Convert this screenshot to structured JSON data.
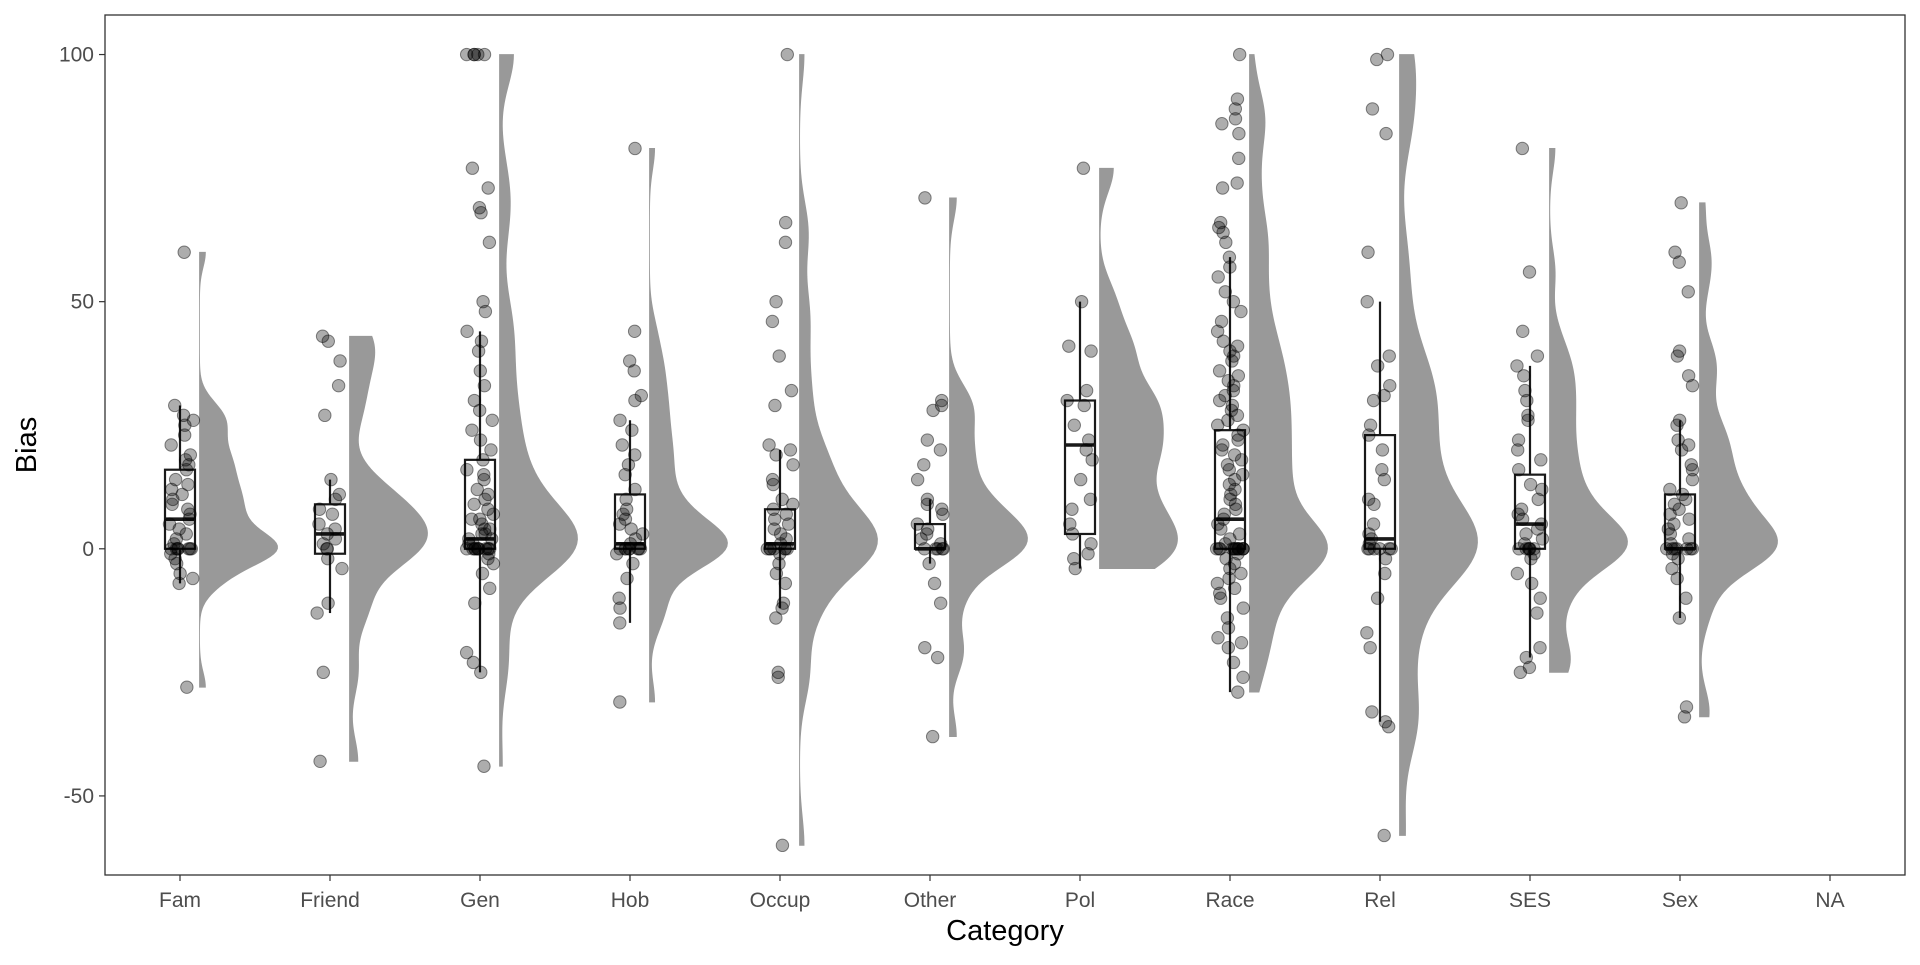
{
  "chart_data": {
    "type": "raincloud",
    "title": "",
    "xlabel": "Category",
    "ylabel": "Bias",
    "categories": [
      "Fam",
      "Friend",
      "Gen",
      "Hob",
      "Occup",
      "Other",
      "Pol",
      "Race",
      "Rel",
      "SES",
      "Sex",
      "NA"
    ],
    "ylim": [
      -66,
      108
    ],
    "yticks": [
      -50,
      0,
      50,
      100
    ],
    "grid": false,
    "legend": "none",
    "colors": {
      "points": "#000000",
      "density": "#999999",
      "box": "#1a1a1a",
      "panel_border": "#333333"
    },
    "boxes": [
      {
        "category": "Fam",
        "whisker_low": -7,
        "q1": 0,
        "median": 6,
        "q3": 16,
        "whisker_high": 29
      },
      {
        "category": "Friend",
        "whisker_low": -13,
        "q1": -1,
        "median": 3,
        "q3": 9,
        "whisker_high": 14
      },
      {
        "category": "Gen",
        "whisker_low": -25,
        "q1": 0,
        "median": 2,
        "q3": 18,
        "whisker_high": 44
      },
      {
        "category": "Hob",
        "whisker_low": -15,
        "q1": 0,
        "median": 1,
        "q3": 11,
        "whisker_high": 26
      },
      {
        "category": "Occup",
        "whisker_low": -12,
        "q1": 0,
        "median": 1,
        "q3": 8,
        "whisker_high": 20
      },
      {
        "category": "Other",
        "whisker_low": -3,
        "q1": 0,
        "median": 0,
        "q3": 5,
        "whisker_high": 10
      },
      {
        "category": "Pol",
        "whisker_low": -4,
        "q1": 3,
        "median": 21,
        "q3": 30,
        "whisker_high": 50
      },
      {
        "category": "Race",
        "whisker_low": -29,
        "q1": 0,
        "median": 6,
        "q3": 24,
        "whisker_high": 59
      },
      {
        "category": "Rel",
        "whisker_low": -35,
        "q1": 0,
        "median": 2,
        "q3": 23,
        "whisker_high": 50
      },
      {
        "category": "SES",
        "whisker_low": -22,
        "q1": 0,
        "median": 5,
        "q3": 15,
        "whisker_high": 37
      },
      {
        "category": "Sex",
        "whisker_low": -14,
        "q1": 0,
        "median": 0,
        "q3": 11,
        "whisker_high": 26
      }
    ],
    "points": {
      "Fam": [
        60,
        29,
        27,
        26,
        25,
        23,
        21,
        19,
        18,
        17,
        16,
        14,
        13,
        12,
        11,
        10,
        9,
        8,
        7,
        6,
        5,
        4,
        3,
        2,
        1,
        0,
        0,
        0,
        0,
        0,
        0,
        0,
        -1,
        -2,
        -3,
        -5,
        -6,
        -7,
        -28
      ],
      "Friend": [
        43,
        42,
        38,
        33,
        27,
        14,
        11,
        10,
        8,
        7,
        5,
        4,
        3,
        2,
        1,
        0,
        0,
        -2,
        -4,
        -11,
        -13,
        -25,
        -43
      ],
      "Gen": [
        100,
        100,
        100,
        100,
        100,
        77,
        73,
        69,
        68,
        62,
        50,
        48,
        44,
        42,
        40,
        36,
        33,
        30,
        28,
        26,
        24,
        22,
        20,
        18,
        16,
        15,
        14,
        12,
        11,
        10,
        9,
        8,
        7,
        6,
        6,
        5,
        4,
        4,
        3,
        3,
        2,
        2,
        1,
        1,
        0,
        0,
        0,
        0,
        0,
        0,
        0,
        0,
        0,
        0,
        0,
        -1,
        -2,
        -3,
        -5,
        -8,
        -11,
        -21,
        -23,
        -25,
        -44
      ],
      "Hob": [
        81,
        44,
        38,
        36,
        31,
        30,
        26,
        24,
        21,
        19,
        17,
        15,
        12,
        10,
        8,
        7,
        6,
        5,
        4,
        3,
        2,
        1,
        0,
        0,
        0,
        0,
        0,
        0,
        0,
        0,
        -1,
        -3,
        -6,
        -10,
        -12,
        -15,
        -31
      ],
      "Occup": [
        100,
        66,
        62,
        50,
        46,
        39,
        32,
        29,
        21,
        20,
        19,
        17,
        14,
        13,
        10,
        9,
        8,
        7,
        6,
        5,
        4,
        3,
        2,
        1,
        0,
        0,
        0,
        0,
        0,
        0,
        0,
        -1,
        -3,
        -5,
        -7,
        -11,
        -12,
        -14,
        -25,
        -26,
        -60
      ],
      "Other": [
        71,
        30,
        29,
        28,
        22,
        20,
        17,
        14,
        10,
        9,
        8,
        7,
        5,
        4,
        3,
        2,
        1,
        0,
        0,
        0,
        0,
        0,
        -3,
        -7,
        -11,
        -20,
        -22,
        -38
      ],
      "Pol": [
        77,
        50,
        41,
        40,
        32,
        30,
        29,
        25,
        22,
        20,
        18,
        14,
        10,
        8,
        5,
        3,
        1,
        -1,
        -2,
        -4
      ],
      "Race": [
        100,
        91,
        89,
        87,
        86,
        84,
        79,
        74,
        73,
        66,
        65,
        64,
        62,
        59,
        57,
        55,
        52,
        50,
        48,
        46,
        44,
        42,
        41,
        40,
        39,
        38,
        36,
        35,
        34,
        33,
        32,
        31,
        30,
        29,
        28,
        27,
        26,
        25,
        24,
        23,
        22,
        21,
        20,
        19,
        18,
        17,
        16,
        15,
        14,
        13,
        12,
        11,
        10,
        9,
        8,
        7,
        6,
        5,
        4,
        3,
        2,
        1,
        0,
        0,
        0,
        0,
        0,
        0,
        0,
        0,
        0,
        0,
        0,
        0,
        0,
        -1,
        -2,
        -3,
        -4,
        -5,
        -6,
        -7,
        -8,
        -9,
        -10,
        -12,
        -14,
        -16,
        -18,
        -19,
        -20,
        -23,
        -26,
        -29
      ],
      "Rel": [
        100,
        99,
        89,
        84,
        60,
        50,
        39,
        37,
        33,
        31,
        30,
        25,
        23,
        20,
        16,
        14,
        10,
        9,
        5,
        3,
        2,
        1,
        0,
        0,
        0,
        0,
        0,
        0,
        -2,
        -5,
        -10,
        -17,
        -20,
        -33,
        -35,
        -36,
        -58
      ],
      "SES": [
        81,
        56,
        44,
        39,
        37,
        35,
        32,
        30,
        27,
        26,
        22,
        20,
        18,
        16,
        13,
        12,
        10,
        8,
        7,
        6,
        5,
        4,
        3,
        2,
        1,
        0,
        0,
        0,
        0,
        0,
        0,
        -1,
        -2,
        -5,
        -7,
        -10,
        -13,
        -20,
        -22,
        -24,
        -25
      ],
      "Sex": [
        70,
        60,
        58,
        52,
        40,
        39,
        35,
        33,
        26,
        25,
        22,
        21,
        20,
        17,
        16,
        14,
        12,
        11,
        10,
        9,
        8,
        7,
        6,
        5,
        4,
        3,
        2,
        1,
        0,
        0,
        0,
        0,
        0,
        0,
        0,
        -1,
        -2,
        -4,
        -6,
        -10,
        -14,
        -32,
        -34
      ],
      "NA": []
    }
  }
}
